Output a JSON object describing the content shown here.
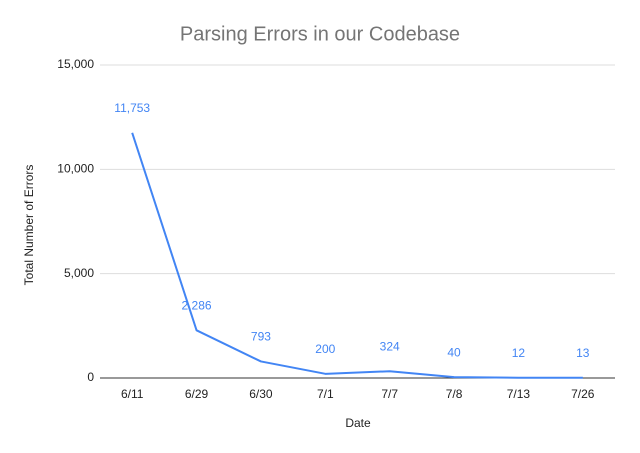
{
  "chart_data": {
    "type": "line",
    "title": "Parsing Errors in our Codebase",
    "x_label": "Date",
    "y_label": "Total Number of Errors",
    "categories": [
      "6/11",
      "6/29",
      "6/30",
      "7/1",
      "7/7",
      "7/8",
      "7/13",
      "7/26"
    ],
    "values": [
      11753,
      2286,
      793,
      200,
      324,
      40,
      12,
      13
    ],
    "value_labels": [
      "11,753",
      "2,286",
      "793",
      "200",
      "324",
      "40",
      "12",
      "13"
    ],
    "color": "#4285f4",
    "ylim": [
      0,
      15000
    ],
    "yticks": [
      0,
      {
        "value": 5000,
        "label": "5,000"
      },
      {
        "value": 10000,
        "label": "10,000"
      },
      {
        "value": 15000,
        "label": "15,000"
      }
    ],
    "grid": true
  }
}
